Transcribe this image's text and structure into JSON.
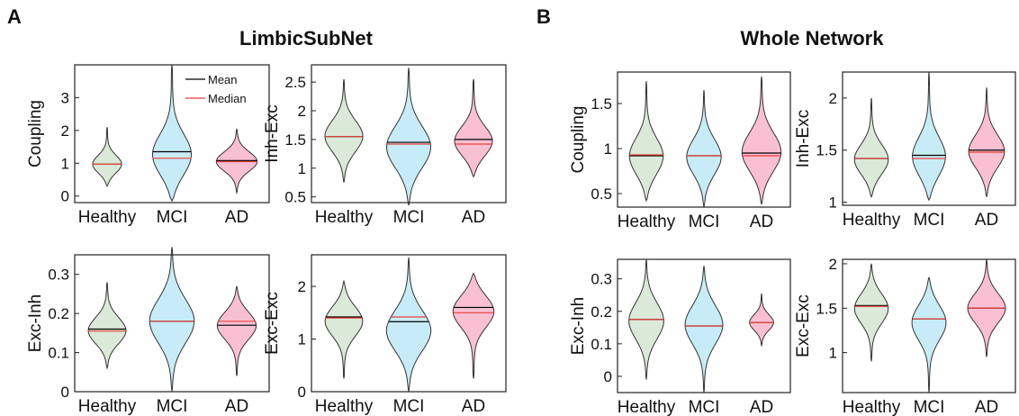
{
  "panels": [
    {
      "label": "A",
      "title": "LimbicSubNet"
    },
    {
      "label": "B",
      "title": "Whole Network"
    }
  ],
  "legend": {
    "mean_label": "Mean",
    "median_label": "Median",
    "mean_color": "#000000",
    "median_color": "#e8413a"
  },
  "colors": {
    "Healthy": "#dbe9d8",
    "MCI": "#c8ecf7",
    "AD": "#f9bfd3"
  },
  "chart_data": [
    {
      "type": "violin",
      "panel": "A",
      "ylabel": "Coupling",
      "categories": [
        "Healthy",
        "MCI",
        "AD"
      ],
      "ylim": [
        -0.2,
        4.0
      ],
      "yticks": [
        0,
        1,
        2,
        3
      ],
      "series": [
        {
          "name": "Healthy",
          "min": 0.3,
          "max": 2.1,
          "mode": 0.95,
          "width": 0.55,
          "mean": 0.97,
          "median": 0.97
        },
        {
          "name": "MCI",
          "min": -0.15,
          "max": 4.0,
          "mode": 1.2,
          "width": 0.75,
          "mean": 1.35,
          "median": 1.15
        },
        {
          "name": "AD",
          "min": 0.1,
          "max": 2.05,
          "mode": 1.05,
          "width": 0.75,
          "mean": 1.08,
          "median": 1.05
        }
      ]
    },
    {
      "type": "violin",
      "panel": "A",
      "ylabel": "Inh-Exc",
      "categories": [
        "Healthy",
        "MCI",
        "AD"
      ],
      "ylim": [
        0.4,
        2.8
      ],
      "yticks": [
        0.5,
        1,
        1.5,
        2,
        2.5
      ],
      "series": [
        {
          "name": "Healthy",
          "min": 0.75,
          "max": 2.55,
          "mode": 1.55,
          "width": 0.7,
          "mean": 1.55,
          "median": 1.55
        },
        {
          "name": "MCI",
          "min": 0.35,
          "max": 2.75,
          "mode": 1.35,
          "width": 0.82,
          "mean": 1.45,
          "median": 1.42
        },
        {
          "name": "AD",
          "min": 0.85,
          "max": 2.55,
          "mode": 1.45,
          "width": 0.72,
          "mean": 1.5,
          "median": 1.42
        }
      ]
    },
    {
      "type": "violin",
      "panel": "A",
      "ylabel": "Exc-Inh",
      "categories": [
        "Healthy",
        "MCI",
        "AD"
      ],
      "ylim": [
        0,
        0.35
      ],
      "yticks": [
        0,
        0.1,
        0.2,
        0.3
      ],
      "series": [
        {
          "name": "Healthy",
          "min": 0.06,
          "max": 0.28,
          "mode": 0.155,
          "width": 0.7,
          "mean": 0.16,
          "median": 0.155
        },
        {
          "name": "MCI",
          "min": 0.0,
          "max": 0.37,
          "mode": 0.18,
          "width": 0.82,
          "mean": 0.18,
          "median": 0.18
        },
        {
          "name": "AD",
          "min": 0.04,
          "max": 0.27,
          "mode": 0.17,
          "width": 0.72,
          "mean": 0.17,
          "median": 0.18
        }
      ]
    },
    {
      "type": "violin",
      "panel": "A",
      "ylabel": "Exc-Exc",
      "categories": [
        "Healthy",
        "MCI",
        "AD"
      ],
      "ylim": [
        0,
        2.6
      ],
      "yticks": [
        0,
        1,
        2
      ],
      "series": [
        {
          "name": "Healthy",
          "min": 0.25,
          "max": 2.1,
          "mode": 1.35,
          "width": 0.7,
          "mean": 1.42,
          "median": 1.4
        },
        {
          "name": "MCI",
          "min": 0.0,
          "max": 2.55,
          "mode": 1.15,
          "width": 0.82,
          "mean": 1.33,
          "median": 1.42
        },
        {
          "name": "AD",
          "min": 0.25,
          "max": 2.25,
          "mode": 1.55,
          "width": 0.78,
          "mean": 1.6,
          "median": 1.5
        }
      ]
    },
    {
      "type": "violin",
      "panel": "B",
      "ylabel": "Coupling",
      "categories": [
        "Healthy",
        "MCI",
        "AD"
      ],
      "ylim": [
        0.35,
        1.85
      ],
      "yticks": [
        0.5,
        1,
        1.5
      ],
      "series": [
        {
          "name": "Healthy",
          "min": 0.42,
          "max": 1.75,
          "mode": 0.9,
          "width": 0.72,
          "mean": 0.92,
          "median": 0.93
        },
        {
          "name": "MCI",
          "min": 0.35,
          "max": 1.65,
          "mode": 0.9,
          "width": 0.72,
          "mean": 0.92,
          "median": 0.92
        },
        {
          "name": "AD",
          "min": 0.38,
          "max": 1.8,
          "mode": 0.95,
          "width": 0.82,
          "mean": 0.95,
          "median": 0.92
        }
      ]
    },
    {
      "type": "violin",
      "panel": "B",
      "ylabel": "Inh-Exc",
      "categories": [
        "Healthy",
        "MCI",
        "AD"
      ],
      "ylim": [
        0.97,
        2.25
      ],
      "yticks": [
        1,
        1.5,
        2
      ],
      "series": [
        {
          "name": "Healthy",
          "min": 1.05,
          "max": 2.0,
          "mode": 1.4,
          "width": 0.72,
          "mean": 1.42,
          "median": 1.42
        },
        {
          "name": "MCI",
          "min": 1.02,
          "max": 2.25,
          "mode": 1.42,
          "width": 0.72,
          "mean": 1.45,
          "median": 1.42
        },
        {
          "name": "AD",
          "min": 1.05,
          "max": 2.1,
          "mode": 1.48,
          "width": 0.75,
          "mean": 1.5,
          "median": 1.48
        }
      ]
    },
    {
      "type": "violin",
      "panel": "B",
      "ylabel": "Exc-Inh",
      "categories": [
        "Healthy",
        "MCI",
        "AD"
      ],
      "ylim": [
        -0.05,
        0.36
      ],
      "yticks": [
        0,
        0.1,
        0.2,
        0.3
      ],
      "series": [
        {
          "name": "Healthy",
          "min": -0.01,
          "max": 0.36,
          "mode": 0.17,
          "width": 0.72,
          "mean": 0.175,
          "median": 0.175
        },
        {
          "name": "MCI",
          "min": -0.05,
          "max": 0.34,
          "mode": 0.16,
          "width": 0.78,
          "mean": 0.155,
          "median": 0.155
        },
        {
          "name": "AD",
          "min": 0.095,
          "max": 0.255,
          "mode": 0.165,
          "width": 0.5,
          "mean": 0.165,
          "median": 0.165
        }
      ]
    },
    {
      "type": "violin",
      "panel": "B",
      "ylabel": "Exc-Exc",
      "categories": [
        "Healthy",
        "MCI",
        "AD"
      ],
      "ylim": [
        0.55,
        2.05
      ],
      "yticks": [
        1,
        1.5,
        2
      ],
      "series": [
        {
          "name": "Healthy",
          "min": 0.9,
          "max": 2.0,
          "mode": 1.5,
          "width": 0.7,
          "mean": 1.53,
          "median": 1.52
        },
        {
          "name": "MCI",
          "min": 0.55,
          "max": 1.85,
          "mode": 1.35,
          "width": 0.72,
          "mean": 1.38,
          "median": 1.38
        },
        {
          "name": "AD",
          "min": 0.95,
          "max": 2.05,
          "mode": 1.5,
          "width": 0.78,
          "mean": 1.5,
          "median": 1.5
        }
      ]
    }
  ]
}
